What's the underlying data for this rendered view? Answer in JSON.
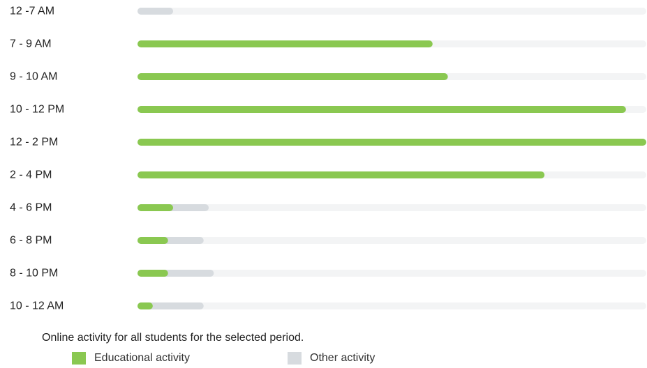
{
  "colors": {
    "educational": "#8ac851",
    "other": "#d7dbdf",
    "track": "#f3f4f5"
  },
  "chart_data": {
    "type": "bar",
    "orientation": "horizontal",
    "stacked": true,
    "categories": [
      "12 -7 AM",
      "7 - 9 AM",
      "9 - 10 AM",
      "10 - 12 PM",
      "12 - 2 PM",
      "2 - 4 PM",
      "4 - 6 PM",
      "6 - 8 PM",
      "8 - 10 PM",
      "10 - 12 AM"
    ],
    "series": [
      {
        "name": "Educational activity",
        "values": [
          0,
          58,
          61,
          96,
          100,
          80,
          7,
          6,
          6,
          3
        ]
      },
      {
        "name": "Other activity",
        "values": [
          7,
          0,
          0,
          0,
          0,
          0,
          7,
          7,
          9,
          10
        ]
      }
    ],
    "xlim": [
      0,
      100
    ],
    "grid": false,
    "legend": "bottom-left"
  },
  "footer": {
    "caption_prefix": "Online activity for ",
    "caption_emphasis": "all",
    "caption_suffix": " students for the selected period."
  },
  "legend": {
    "educational_label": "Educational activity",
    "other_label": "Other activity"
  }
}
